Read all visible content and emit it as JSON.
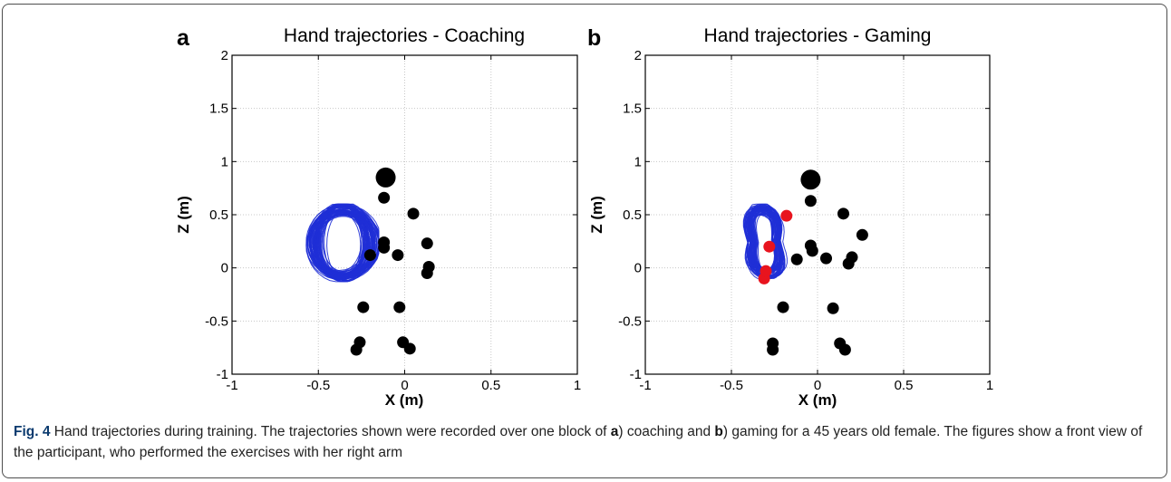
{
  "chart_data": [
    {
      "type": "scatter",
      "panel_letter": "a",
      "title": "Hand trajectories - Coaching",
      "xlabel": "X (m)",
      "ylabel": "Z (m)",
      "xlim": [
        -1,
        1
      ],
      "ylim": [
        -1,
        2
      ],
      "xticks": [
        -1,
        -0.5,
        0,
        0.5,
        1
      ],
      "yticks": [
        -1,
        -0.5,
        0,
        0.5,
        1,
        1.5,
        2
      ],
      "xtick_labels": [
        "-1",
        "-0.5",
        "0",
        "0.5",
        "1"
      ],
      "ytick_labels": [
        "-1",
        "-0.5",
        "0",
        "0.5",
        "1",
        "1.5",
        "2"
      ],
      "grid": true,
      "trajectory": {
        "color": "#1f2fd6",
        "x_range": [
          -0.57,
          -0.15
        ],
        "z_range": [
          -0.13,
          0.6
        ]
      },
      "body_joints": [
        {
          "x": -0.11,
          "z": 0.85,
          "size": "large"
        },
        {
          "x": -0.12,
          "z": 0.66
        },
        {
          "x": 0.05,
          "z": 0.51
        },
        {
          "x": 0.13,
          "z": 0.23
        },
        {
          "x": 0.14,
          "z": 0.01
        },
        {
          "x": 0.13,
          "z": -0.05
        },
        {
          "x": -0.12,
          "z": 0.24
        },
        {
          "x": -0.12,
          "z": 0.19
        },
        {
          "x": -0.04,
          "z": 0.12
        },
        {
          "x": -0.2,
          "z": 0.12
        },
        {
          "x": -0.24,
          "z": -0.37
        },
        {
          "x": -0.03,
          "z": -0.37
        },
        {
          "x": -0.26,
          "z": -0.7
        },
        {
          "x": -0.28,
          "z": -0.77
        },
        {
          "x": -0.01,
          "z": -0.7
        },
        {
          "x": 0.03,
          "z": -0.76
        }
      ],
      "targets": []
    },
    {
      "type": "scatter",
      "panel_letter": "b",
      "title": "Hand trajectories - Gaming",
      "xlabel": "X (m)",
      "ylabel": "Z (m)",
      "xlim": [
        -1,
        1
      ],
      "ylim": [
        -1,
        2
      ],
      "xticks": [
        -1,
        -0.5,
        0,
        0.5,
        1
      ],
      "yticks": [
        -1,
        -0.5,
        0,
        0.5,
        1,
        1.5,
        2
      ],
      "xtick_labels": [
        "-1",
        "-0.5",
        "0",
        "0.5",
        "1"
      ],
      "ytick_labels": [
        "-1",
        "-0.5",
        "0",
        "0.5",
        "1",
        "1.5",
        "2"
      ],
      "grid": true,
      "trajectory": {
        "color": "#1f2fd6",
        "x_range": [
          -0.46,
          -0.15
        ],
        "z_range": [
          -0.1,
          0.6
        ]
      },
      "body_joints": [
        {
          "x": -0.04,
          "z": 0.83,
          "size": "large"
        },
        {
          "x": -0.04,
          "z": 0.63
        },
        {
          "x": 0.15,
          "z": 0.51
        },
        {
          "x": 0.26,
          "z": 0.31
        },
        {
          "x": 0.2,
          "z": 0.1
        },
        {
          "x": 0.18,
          "z": 0.04
        },
        {
          "x": -0.04,
          "z": 0.21
        },
        {
          "x": -0.03,
          "z": 0.16
        },
        {
          "x": 0.05,
          "z": 0.09
        },
        {
          "x": -0.12,
          "z": 0.08
        },
        {
          "x": -0.2,
          "z": -0.37
        },
        {
          "x": 0.09,
          "z": -0.38
        },
        {
          "x": -0.26,
          "z": -0.71
        },
        {
          "x": -0.26,
          "z": -0.77
        },
        {
          "x": 0.13,
          "z": -0.71
        },
        {
          "x": 0.16,
          "z": -0.77
        }
      ],
      "targets": [
        {
          "x": -0.18,
          "z": 0.49
        },
        {
          "x": -0.28,
          "z": 0.2
        },
        {
          "x": -0.31,
          "z": -0.1
        },
        {
          "x": -0.3,
          "z": -0.03
        }
      ]
    }
  ],
  "colors": {
    "joint": "#000000",
    "target": "#e8141e",
    "trajectory": "#1f2fd6",
    "grid": "#c8c8c8"
  },
  "caption": {
    "label": "Fig. 4",
    "text_1": " Hand trajectories during training. The trajectories shown were recorded over one block of ",
    "a": "a",
    "text_2": ") coaching and ",
    "b": "b",
    "text_3": ") gaming for a 45 years old female. The figures show a front view of the participant, who performed the exercises with her right arm"
  }
}
